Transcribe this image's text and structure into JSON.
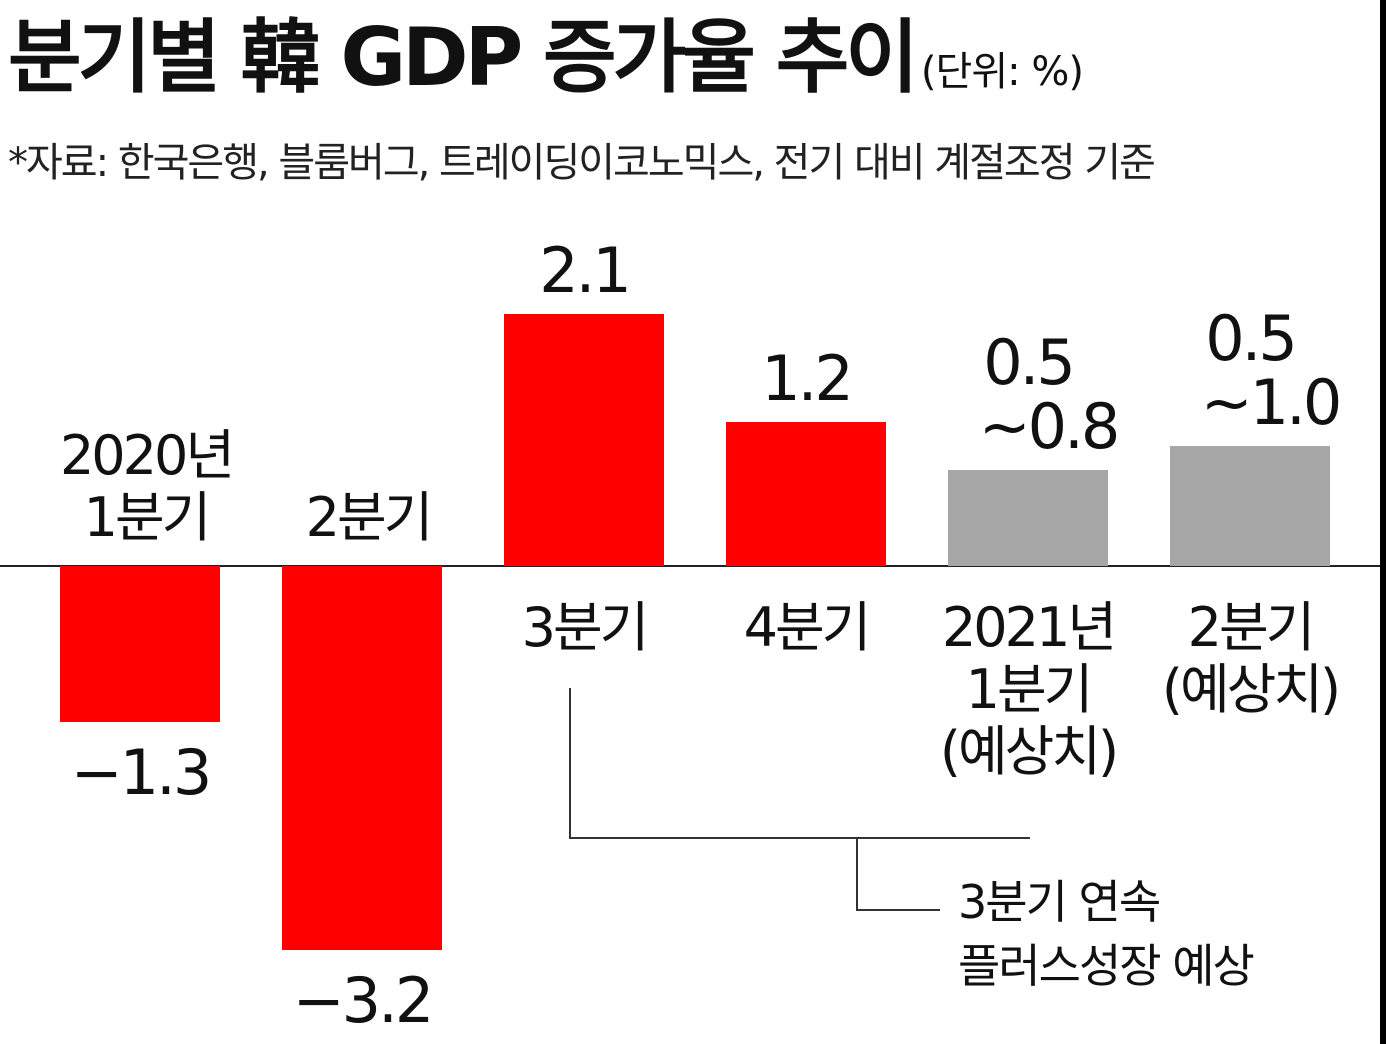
{
  "title": "분기별 韓 GDP 증가율 추이",
  "unit": "(단위: %)",
  "source": "*자료: 한국은행, 블룸버그, 트레이딩이코노믹스, 전기 대비 계절조정 기준",
  "colors": {
    "actual": "#ff0000",
    "forecast": "#a6a6a6",
    "text": "#111111"
  },
  "chart_data": {
    "type": "bar",
    "title": "분기별 韓 GDP 증가율 추이",
    "unit": "%",
    "categories": [
      [
        "2020년",
        "1분기"
      ],
      [
        "2분기"
      ],
      [
        "3분기"
      ],
      [
        "4분기"
      ],
      [
        "2021년",
        "1분기",
        "(예상치)"
      ],
      [
        "2분기",
        "(예상치)"
      ]
    ],
    "values": [
      -1.3,
      -3.2,
      2.1,
      1.2,
      0.8,
      1.0
    ],
    "ranges": [
      null,
      null,
      null,
      null,
      [
        0.5,
        0.8
      ],
      [
        0.5,
        1.0
      ]
    ],
    "value_labels": [
      [
        "−1.3"
      ],
      [
        "−3.2"
      ],
      [
        "2.1"
      ],
      [
        "1.2"
      ],
      [
        "0.5",
        "~0.8"
      ],
      [
        "0.5",
        "~1.0"
      ]
    ],
    "kinds": [
      "actual",
      "actual",
      "actual",
      "actual",
      "forecast",
      "forecast"
    ],
    "annotation": [
      "3분기 연속",
      "플러스성장 예상"
    ]
  }
}
